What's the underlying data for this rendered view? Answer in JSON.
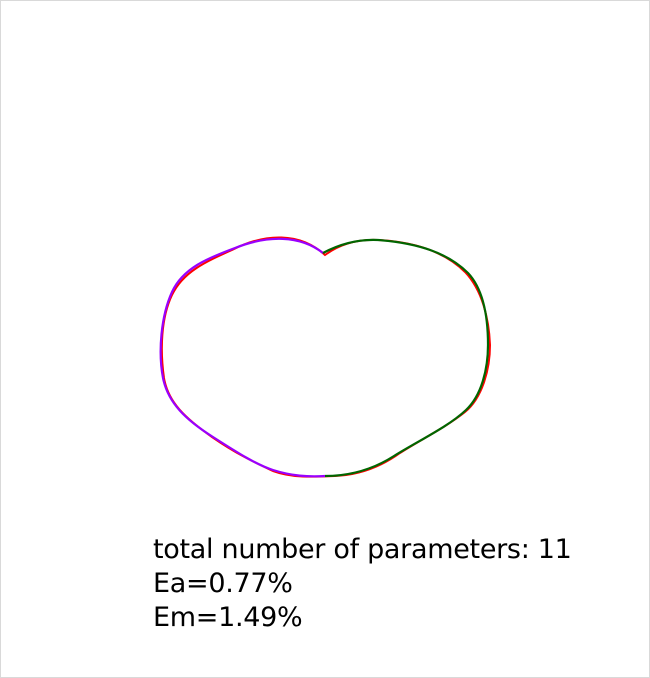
{
  "caption": {
    "line1": "total number of parameters: 11",
    "line2": "Ea=0.77%",
    "line3": "Em=1.49%"
  },
  "colors": {
    "original_contour": "#ff0000",
    "fit_left_half": "#9900ff",
    "fit_right_half": "#006600"
  }
}
